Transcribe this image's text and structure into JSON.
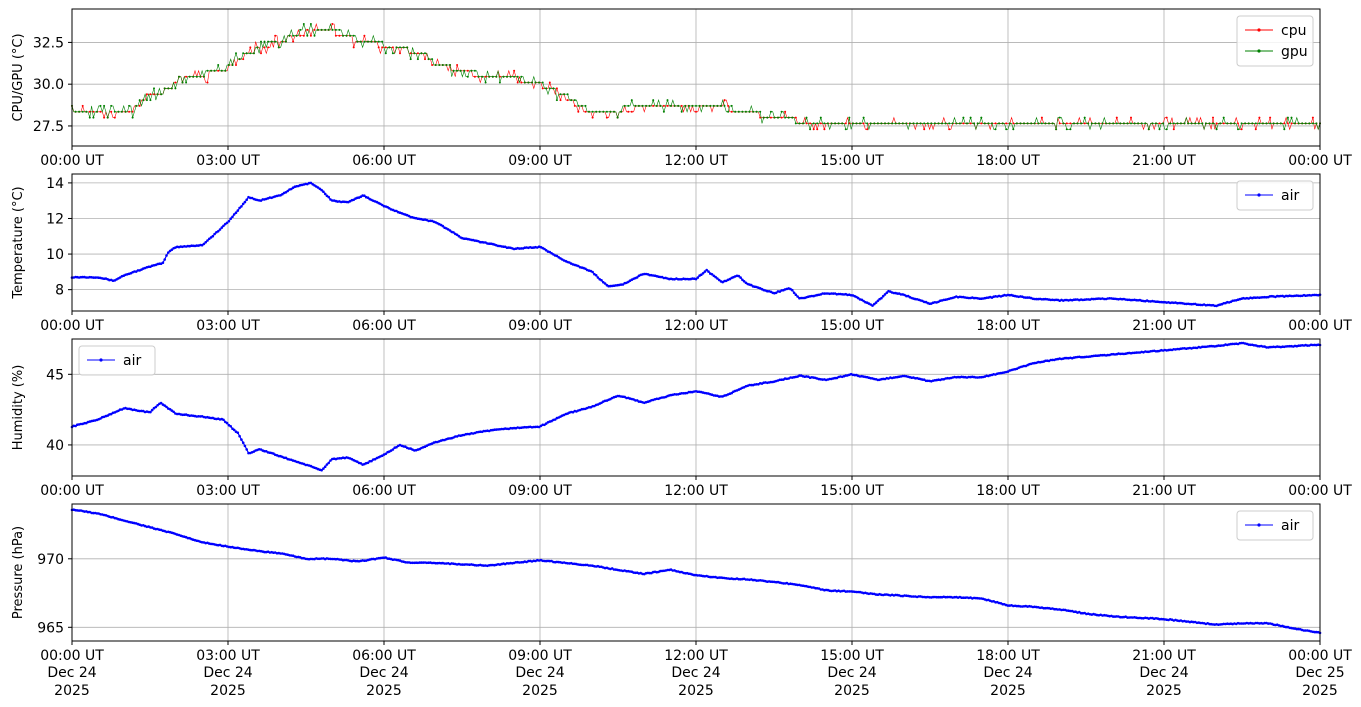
{
  "colors": {
    "cpu": "#ff0000",
    "gpu": "#008000",
    "air": "#0000ff",
    "grid": "#b0b0b0"
  },
  "chart_data": [
    {
      "type": "line",
      "ylabel": "CPU/GPU (°C)",
      "ylim": [
        26.3,
        34.5
      ],
      "yticks": [
        27.5,
        30.0,
        32.5
      ],
      "ytick_labels": [
        "27.5",
        "30.0",
        "32.5"
      ],
      "xlim": [
        0,
        24
      ],
      "xticks": [
        0,
        3,
        6,
        9,
        12,
        15,
        18,
        21,
        24
      ],
      "xtick_labels": [
        "00:00 UT",
        "03:00 UT",
        "06:00 UT",
        "09:00 UT",
        "12:00 UT",
        "15:00 UT",
        "18:00 UT",
        "21:00 UT",
        "00:00 UT"
      ],
      "grid": true,
      "legend": "upper-right",
      "series": [
        {
          "name": "cpu",
          "color": "#ff0000",
          "x": [
            0,
            0.5,
            1.2,
            1.4,
            1.8,
            2.1,
            2.6,
            3.0,
            3.2,
            3.5,
            4.0,
            4.5,
            5.0,
            5.5,
            6.0,
            6.5,
            6.8,
            7.0,
            7.5,
            8.0,
            8.5,
            9.0,
            9.5,
            9.8,
            10.0,
            10.5,
            11.0,
            11.5,
            12.0,
            12.5,
            13.0,
            13.5,
            14.0,
            14.5,
            15.0,
            15.5,
            16.0,
            16.5,
            17.0,
            18.0,
            19.0,
            20.0,
            21.0,
            21.5,
            22.0,
            22.5,
            23.0,
            24.0
          ],
          "y": [
            28.5,
            28.5,
            28.5,
            29.2,
            29.6,
            30.4,
            30.6,
            31.0,
            31.5,
            32.0,
            32.6,
            33.1,
            33.2,
            32.6,
            32.3,
            32.0,
            31.8,
            31.2,
            30.7,
            30.5,
            30.3,
            30.0,
            29.2,
            28.6,
            28.2,
            28.4,
            28.6,
            28.6,
            28.6,
            28.6,
            28.3,
            28.0,
            27.8,
            27.8,
            27.8,
            27.8,
            27.8,
            27.8,
            27.8,
            27.8,
            27.8,
            27.8,
            27.5,
            27.5,
            27.5,
            27.5,
            27.5,
            27.5
          ]
        },
        {
          "name": "gpu",
          "color": "#008000",
          "x": [
            0,
            0.5,
            1.2,
            1.4,
            1.8,
            2.1,
            2.6,
            3.0,
            3.2,
            3.5,
            4.0,
            4.5,
            5.0,
            5.5,
            6.0,
            6.5,
            6.8,
            7.0,
            7.5,
            8.0,
            8.5,
            9.0,
            9.5,
            9.8,
            10.0,
            10.5,
            11.0,
            11.5,
            12.0,
            12.5,
            13.0,
            13.5,
            14.0,
            14.5,
            15.0,
            15.5,
            16.0,
            16.5,
            17.0,
            18.0,
            19.0,
            20.0,
            21.0,
            21.5,
            22.0,
            22.5,
            23.0,
            24.0
          ],
          "y": [
            28.5,
            28.5,
            28.5,
            29.3,
            29.6,
            30.4,
            30.7,
            31.0,
            31.6,
            32.0,
            32.7,
            33.2,
            33.3,
            32.7,
            32.4,
            32.0,
            31.8,
            31.2,
            30.8,
            30.5,
            30.4,
            30.0,
            29.3,
            28.7,
            28.3,
            28.5,
            28.7,
            28.7,
            28.7,
            28.7,
            28.3,
            28.0,
            27.8,
            27.8,
            27.8,
            27.8,
            27.8,
            27.8,
            27.8,
            27.8,
            27.8,
            27.8,
            27.6,
            27.6,
            27.6,
            27.6,
            27.6,
            27.6
          ]
        }
      ]
    },
    {
      "type": "line",
      "ylabel": "Temperature (°C)",
      "ylim": [
        6.8,
        14.5
      ],
      "yticks": [
        8,
        10,
        12,
        14
      ],
      "ytick_labels": [
        "8",
        "10",
        "12",
        "14"
      ],
      "xlim": [
        0,
        24
      ],
      "xticks": [
        0,
        3,
        6,
        9,
        12,
        15,
        18,
        21,
        24
      ],
      "xtick_labels": [
        "00:00 UT",
        "03:00 UT",
        "06:00 UT",
        "09:00 UT",
        "12:00 UT",
        "15:00 UT",
        "18:00 UT",
        "21:00 UT",
        "00:00 UT"
      ],
      "grid": true,
      "legend": "upper-right",
      "series": [
        {
          "name": "air",
          "color": "#0000ff",
          "x": [
            0,
            0.5,
            0.8,
            1.0,
            1.5,
            1.75,
            1.85,
            2.0,
            2.5,
            2.7,
            3.0,
            3.2,
            3.4,
            3.6,
            4.0,
            4.3,
            4.6,
            4.8,
            5.0,
            5.3,
            5.6,
            6.0,
            6.5,
            7.0,
            7.5,
            8.0,
            8.5,
            9.0,
            9.5,
            10.0,
            10.3,
            10.6,
            11.0,
            11.5,
            12.0,
            12.2,
            12.5,
            12.8,
            13.0,
            13.5,
            13.8,
            14.0,
            14.5,
            15.0,
            15.4,
            15.7,
            16.0,
            16.5,
            17.0,
            17.5,
            18.0,
            18.5,
            19.0,
            20.0,
            21.0,
            22.0,
            22.5,
            23.0,
            24.0
          ],
          "y": [
            8.7,
            8.7,
            8.5,
            8.8,
            9.3,
            9.5,
            10.1,
            10.4,
            10.5,
            11.0,
            11.8,
            12.5,
            13.2,
            13.0,
            13.3,
            13.8,
            14.0,
            13.6,
            13.0,
            12.9,
            13.3,
            12.7,
            12.1,
            11.8,
            10.9,
            10.6,
            10.3,
            10.4,
            9.6,
            9.0,
            8.2,
            8.3,
            8.9,
            8.6,
            8.6,
            9.1,
            8.4,
            8.8,
            8.3,
            7.8,
            8.1,
            7.5,
            7.8,
            7.7,
            7.1,
            7.9,
            7.7,
            7.2,
            7.6,
            7.5,
            7.7,
            7.5,
            7.4,
            7.5,
            7.3,
            7.1,
            7.5,
            7.6,
            7.7
          ]
        }
      ]
    },
    {
      "type": "line",
      "ylabel": "Humidity (%)",
      "ylim": [
        37.8,
        47.5
      ],
      "yticks": [
        40,
        45
      ],
      "ytick_labels": [
        "40",
        "45"
      ],
      "xlim": [
        0,
        24
      ],
      "xticks": [
        0,
        3,
        6,
        9,
        12,
        15,
        18,
        21,
        24
      ],
      "xtick_labels": [
        "00:00 UT",
        "03:00 UT",
        "06:00 UT",
        "09:00 UT",
        "12:00 UT",
        "15:00 UT",
        "18:00 UT",
        "21:00 UT",
        "00:00 UT"
      ],
      "grid": true,
      "legend": "upper-left",
      "series": [
        {
          "name": "air",
          "color": "#0000ff",
          "x": [
            0,
            0.5,
            1.0,
            1.5,
            1.7,
            2.0,
            2.5,
            2.9,
            3.2,
            3.4,
            3.6,
            4.0,
            4.5,
            4.8,
            5.0,
            5.3,
            5.6,
            6.0,
            6.3,
            6.6,
            7.0,
            7.5,
            8.0,
            8.5,
            9.0,
            9.5,
            10.0,
            10.5,
            11.0,
            11.5,
            12.0,
            12.5,
            13.0,
            13.5,
            14.0,
            14.5,
            15.0,
            15.5,
            16.0,
            16.5,
            17.0,
            17.5,
            18.0,
            18.5,
            19.0,
            20.0,
            21.0,
            22.0,
            22.5,
            23.0,
            24.0
          ],
          "y": [
            41.3,
            41.8,
            42.6,
            42.3,
            43.0,
            42.2,
            42.0,
            41.8,
            40.8,
            39.4,
            39.7,
            39.2,
            38.6,
            38.2,
            39.0,
            39.1,
            38.6,
            39.3,
            40.0,
            39.6,
            40.2,
            40.7,
            41.0,
            41.2,
            41.3,
            42.2,
            42.7,
            43.5,
            43.0,
            43.5,
            43.8,
            43.4,
            44.2,
            44.5,
            44.9,
            44.6,
            45.0,
            44.6,
            44.9,
            44.5,
            44.8,
            44.8,
            45.2,
            45.8,
            46.1,
            46.4,
            46.7,
            47.0,
            47.2,
            46.9,
            47.1
          ]
        }
      ]
    },
    {
      "type": "line",
      "ylabel": "Pressure (hPa)",
      "ylim": [
        964.0,
        974.0
      ],
      "yticks": [
        965,
        970
      ],
      "ytick_labels": [
        "965",
        "970"
      ],
      "xlim": [
        0,
        24
      ],
      "xticks": [
        0,
        3,
        6,
        9,
        12,
        15,
        18,
        21,
        24
      ],
      "xtick_labels": [
        "00:00 UT",
        "03:00 UT",
        "06:00 UT",
        "09:00 UT",
        "12:00 UT",
        "15:00 UT",
        "18:00 UT",
        "21:00 UT",
        "00:00 UT"
      ],
      "xtick_sublabels": [
        "Dec 24",
        "Dec 24",
        "Dec 24",
        "Dec 24",
        "Dec 24",
        "Dec 24",
        "Dec 24",
        "Dec 24",
        "Dec 25"
      ],
      "xtick_years": [
        "2025",
        "2025",
        "2025",
        "2025",
        "2025",
        "2025",
        "2025",
        "2025",
        "2025"
      ],
      "grid": true,
      "legend": "upper-right",
      "series": [
        {
          "name": "air",
          "color": "#0000ff",
          "x": [
            0,
            0.5,
            1.0,
            1.5,
            2.0,
            2.5,
            3.0,
            3.5,
            4.0,
            4.5,
            5.0,
            5.5,
            6.0,
            6.5,
            7.0,
            7.5,
            8.0,
            8.5,
            9.0,
            9.5,
            10.0,
            10.5,
            11.0,
            11.5,
            12.0,
            12.5,
            13.0,
            13.5,
            14.0,
            14.5,
            15.0,
            15.5,
            16.0,
            16.5,
            17.0,
            17.5,
            18.0,
            18.5,
            19.0,
            19.5,
            20.0,
            20.5,
            21.0,
            21.5,
            22.0,
            22.5,
            23.0,
            23.5,
            24.0
          ],
          "y": [
            973.6,
            973.3,
            972.8,
            972.3,
            971.8,
            971.2,
            970.9,
            970.6,
            970.4,
            970.0,
            970.0,
            969.8,
            970.1,
            969.7,
            969.7,
            969.6,
            969.5,
            969.7,
            969.9,
            969.7,
            969.5,
            969.2,
            968.9,
            969.2,
            968.8,
            968.6,
            968.5,
            968.3,
            968.1,
            967.7,
            967.6,
            967.4,
            967.3,
            967.2,
            967.2,
            967.1,
            966.6,
            966.5,
            966.3,
            966.0,
            965.8,
            965.7,
            965.6,
            965.4,
            965.2,
            965.3,
            965.3,
            964.9,
            964.6
          ]
        }
      ]
    }
  ]
}
